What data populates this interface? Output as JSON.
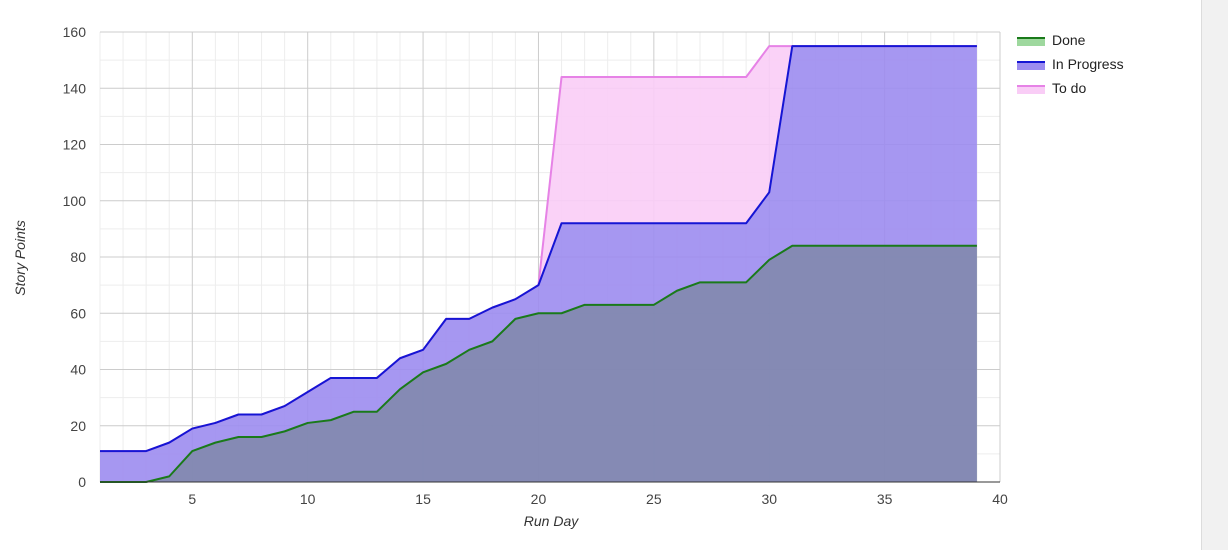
{
  "chart_data": {
    "type": "area",
    "title": "",
    "xlabel": "Run Day",
    "ylabel": "Story Points",
    "xlim": [
      1,
      40
    ],
    "ylim": [
      0,
      160
    ],
    "x_ticks": [
      5,
      10,
      15,
      20,
      25,
      30,
      35,
      40
    ],
    "y_ticks": [
      0,
      20,
      40,
      60,
      80,
      100,
      120,
      140,
      160
    ],
    "grid": true,
    "stacked": true,
    "legend_position": "right",
    "x": [
      1,
      2,
      3,
      4,
      5,
      6,
      7,
      8,
      9,
      10,
      11,
      12,
      13,
      14,
      15,
      16,
      17,
      18,
      19,
      20,
      21,
      22,
      23,
      24,
      25,
      26,
      27,
      28,
      29,
      30,
      31,
      32,
      33,
      34,
      35,
      36,
      37,
      38,
      39
    ],
    "series": [
      {
        "name": "Done",
        "line_color": "#1a7a1a",
        "fill_color": "#9ed89e",
        "values": [
          0,
          0,
          0,
          2,
          11,
          14,
          16,
          16,
          18,
          21,
          22,
          25,
          25,
          33,
          39,
          42,
          47,
          50,
          58,
          60,
          60,
          63,
          63,
          63,
          63,
          68,
          71,
          71,
          71,
          79,
          84,
          84,
          84,
          84,
          84,
          84,
          84,
          84,
          84
        ]
      },
      {
        "name": "In Progress",
        "line_color": "#1515d4",
        "fill_color": "#9c8cf0",
        "values": [
          11,
          11,
          11,
          12,
          8,
          7,
          8,
          8,
          9,
          11,
          15,
          12,
          12,
          11,
          8,
          16,
          11,
          12,
          7,
          10,
          32,
          29,
          29,
          29,
          29,
          24,
          21,
          21,
          21,
          24,
          71,
          71,
          71,
          71,
          71,
          71,
          71,
          71,
          71
        ]
      },
      {
        "name": "To do",
        "line_color": "#e682e6",
        "fill_color": "#f9cdf6",
        "values": [
          0,
          0,
          0,
          0,
          0,
          0,
          0,
          0,
          0,
          0,
          0,
          0,
          0,
          0,
          0,
          0,
          0,
          0,
          0,
          0,
          52,
          52,
          52,
          52,
          52,
          52,
          52,
          52,
          52,
          52,
          0,
          0,
          0,
          0,
          0,
          0,
          0,
          0,
          0
        ]
      }
    ]
  }
}
